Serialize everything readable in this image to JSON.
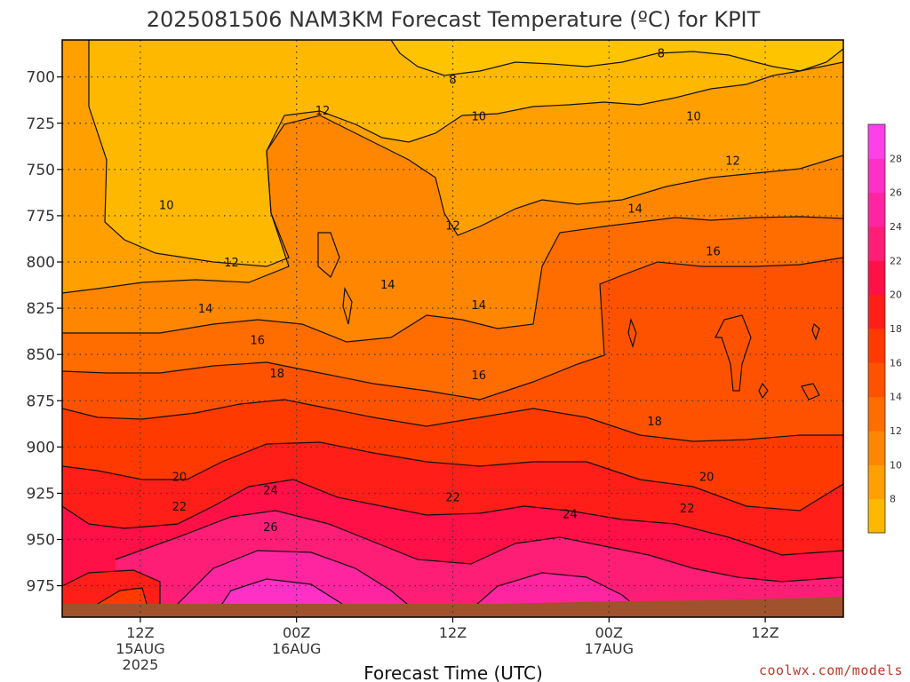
{
  "title": "2025081506 NAM3KM Forecast Temperature (ºC) for KPIT",
  "credit": "coolwx.com/models",
  "chart_data": {
    "type": "heatmap",
    "title": "2025081506 NAM3KM Forecast Temperature (ºC) for KPIT",
    "xlabel": "Forecast Time (UTC)",
    "ylabel": "",
    "x_ticks": [
      {
        "label": "12Z",
        "date": "15AUG",
        "year": "2025",
        "hours": 6
      },
      {
        "label": "00Z",
        "date": "16AUG",
        "year": "",
        "hours": 18
      },
      {
        "label": "12Z",
        "date": "",
        "year": "",
        "hours": 30
      },
      {
        "label": "00Z",
        "date": "17AUG",
        "year": "",
        "hours": 42
      },
      {
        "label": "12Z",
        "date": "",
        "year": "",
        "hours": 54
      }
    ],
    "x_range_hours": [
      0,
      60
    ],
    "y_ticks": [
      700,
      725,
      750,
      775,
      800,
      825,
      850,
      875,
      900,
      925,
      950,
      975
    ],
    "y_range_hPa": [
      680,
      992
    ],
    "colorbar": {
      "ticks": [
        8,
        10,
        12,
        14,
        16,
        18,
        20,
        22,
        24,
        26,
        28
      ],
      "colors": [
        "#ffb800",
        "#ff9f00",
        "#ff8600",
        "#ff6c00",
        "#ff5200",
        "#ff3a00",
        "#ff1f18",
        "#ff1046",
        "#ff1e76",
        "#ff25a0",
        "#ff30c6",
        "#ff40e8"
      ]
    },
    "contour_labels": [
      {
        "text": "8",
        "hours": 46,
        "p": 687
      },
      {
        "text": "8",
        "hours": 30,
        "p": 701
      },
      {
        "text": "10",
        "hours": 32,
        "p": 721
      },
      {
        "text": "10",
        "hours": 48.5,
        "p": 721
      },
      {
        "text": "12",
        "hours": 20,
        "p": 718
      },
      {
        "text": "12",
        "hours": 51.5,
        "p": 745
      },
      {
        "text": "10",
        "hours": 8,
        "p": 769
      },
      {
        "text": "12",
        "hours": 30,
        "p": 780
      },
      {
        "text": "14",
        "hours": 44,
        "p": 771
      },
      {
        "text": "16",
        "hours": 50,
        "p": 794
      },
      {
        "text": "12",
        "hours": 13,
        "p": 800
      },
      {
        "text": "14",
        "hours": 25,
        "p": 812
      },
      {
        "text": "14",
        "hours": 32,
        "p": 823
      },
      {
        "text": "14",
        "hours": 11,
        "p": 825
      },
      {
        "text": "16",
        "hours": 15,
        "p": 842
      },
      {
        "text": "16",
        "hours": 32,
        "p": 861
      },
      {
        "text": "18",
        "hours": 16.5,
        "p": 860
      },
      {
        "text": "18",
        "hours": 45.5,
        "p": 886
      },
      {
        "text": "20",
        "hours": 9,
        "p": 916
      },
      {
        "text": "20",
        "hours": 49.5,
        "p": 916
      },
      {
        "text": "22",
        "hours": 9,
        "p": 932
      },
      {
        "text": "22",
        "hours": 30,
        "p": 927
      },
      {
        "text": "22",
        "hours": 48,
        "p": 933
      },
      {
        "text": "24",
        "hours": 16,
        "p": 923
      },
      {
        "text": "24",
        "hours": 39,
        "p": 936
      },
      {
        "text": "26",
        "hours": 16,
        "p": 943
      }
    ]
  }
}
